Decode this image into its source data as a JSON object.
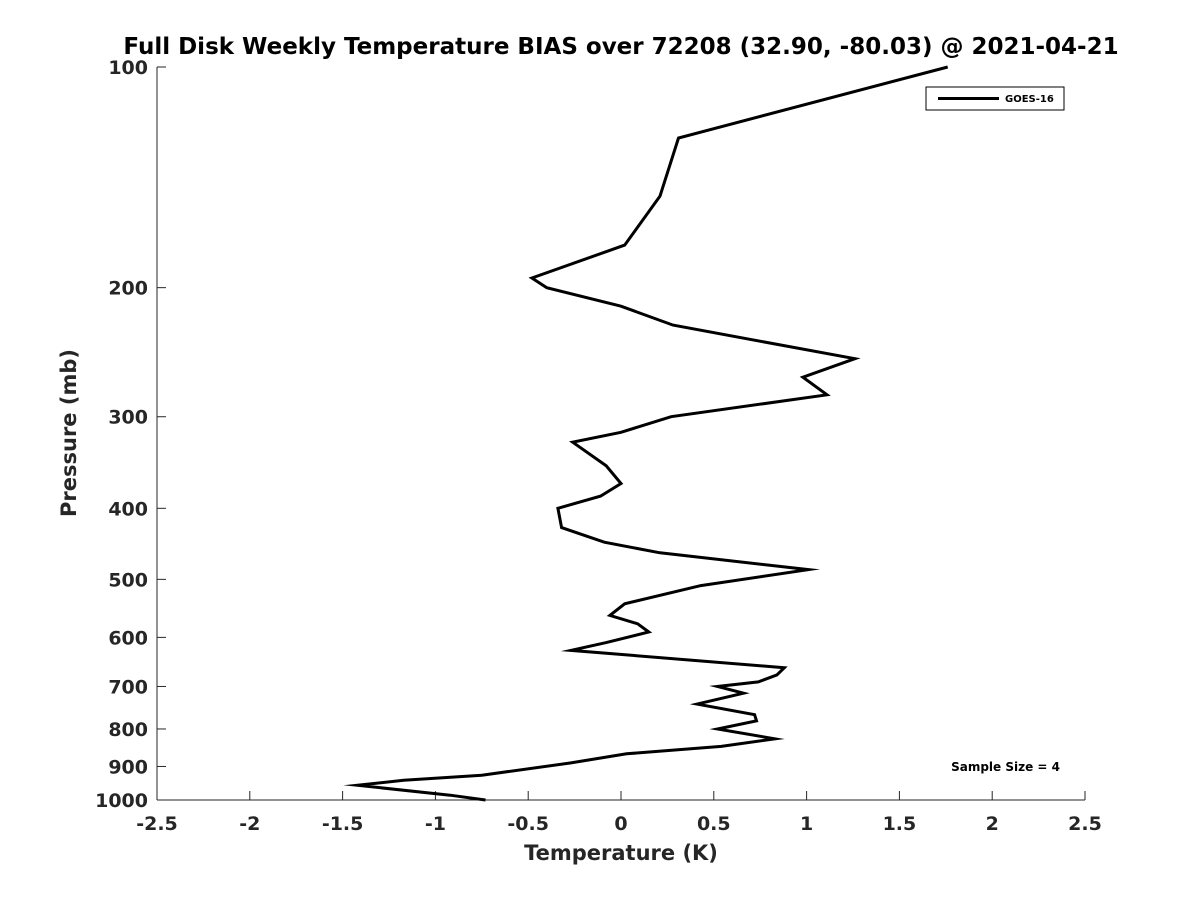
{
  "chart_data": {
    "type": "line",
    "title": "Full Disk Weekly Temperature BIAS over 72208 (32.90, -80.03) @ 2021-04-21",
    "xlabel": "Temperature (K)",
    "ylabel": "Pressure (mb)",
    "xlim": [
      -2.5,
      2.5
    ],
    "ylim": [
      100,
      1000
    ],
    "y_scale": "log",
    "y_reversed": true,
    "grid": false,
    "legend_position": "top-right",
    "x_ticks": [
      -2.5,
      -2,
      -1.5,
      -1,
      -0.5,
      0,
      0.5,
      1,
      1.5,
      2,
      2.5
    ],
    "x_tick_labels": [
      "-2.5",
      "-2",
      "-1.5",
      "-1",
      "-0.5",
      "0",
      "0.5",
      "1",
      "1.5",
      "2",
      "2.5"
    ],
    "y_ticks": [
      100,
      200,
      300,
      400,
      500,
      600,
      700,
      800,
      900,
      1000
    ],
    "y_tick_labels": [
      "100",
      "200",
      "300",
      "400",
      "500",
      "600",
      "700",
      "800",
      "900",
      "1000"
    ],
    "series": [
      {
        "name": "GOES-16",
        "color": "#000000",
        "points": [
          {
            "x": 1.76,
            "p": 100
          },
          {
            "x": 0.31,
            "p": 125
          },
          {
            "x": 0.21,
            "p": 150
          },
          {
            "x": 0.02,
            "p": 175
          },
          {
            "x": -0.48,
            "p": 194
          },
          {
            "x": -0.4,
            "p": 200
          },
          {
            "x": 0.0,
            "p": 212
          },
          {
            "x": 0.28,
            "p": 225
          },
          {
            "x": 1.26,
            "p": 250
          },
          {
            "x": 0.98,
            "p": 265
          },
          {
            "x": 1.11,
            "p": 280
          },
          {
            "x": 0.27,
            "p": 300
          },
          {
            "x": 0.0,
            "p": 315
          },
          {
            "x": -0.26,
            "p": 325
          },
          {
            "x": -0.08,
            "p": 350
          },
          {
            "x": 0.0,
            "p": 370
          },
          {
            "x": -0.11,
            "p": 385
          },
          {
            "x": -0.34,
            "p": 400
          },
          {
            "x": -0.32,
            "p": 425
          },
          {
            "x": -0.09,
            "p": 445
          },
          {
            "x": 0.21,
            "p": 460
          },
          {
            "x": 1.01,
            "p": 485
          },
          {
            "x": 0.43,
            "p": 510
          },
          {
            "x": 0.02,
            "p": 540
          },
          {
            "x": -0.06,
            "p": 560
          },
          {
            "x": 0.09,
            "p": 575
          },
          {
            "x": 0.15,
            "p": 590
          },
          {
            "x": -0.08,
            "p": 610
          },
          {
            "x": -0.27,
            "p": 625
          },
          {
            "x": 0.88,
            "p": 660
          },
          {
            "x": 0.84,
            "p": 675
          },
          {
            "x": 0.74,
            "p": 690
          },
          {
            "x": 0.52,
            "p": 700
          },
          {
            "x": 0.66,
            "p": 715
          },
          {
            "x": 0.41,
            "p": 740
          },
          {
            "x": 0.72,
            "p": 765
          },
          {
            "x": 0.73,
            "p": 780
          },
          {
            "x": 0.52,
            "p": 800
          },
          {
            "x": 0.83,
            "p": 825
          },
          {
            "x": 0.54,
            "p": 845
          },
          {
            "x": 0.03,
            "p": 865
          },
          {
            "x": -0.27,
            "p": 890
          },
          {
            "x": -0.75,
            "p": 925
          },
          {
            "x": -1.17,
            "p": 940
          },
          {
            "x": -1.42,
            "p": 955
          },
          {
            "x": -0.92,
            "p": 985
          },
          {
            "x": -0.73,
            "p": 1000
          }
        ]
      }
    ],
    "annotations": [
      {
        "text": "Sample Size = 4",
        "position": "bottom-right"
      }
    ]
  }
}
